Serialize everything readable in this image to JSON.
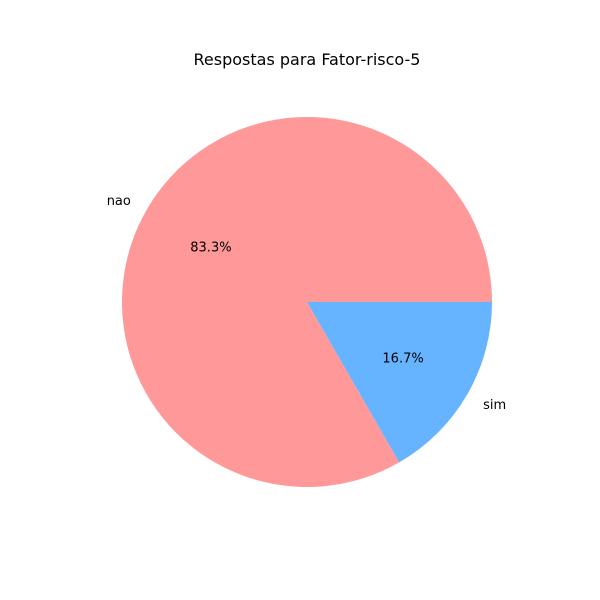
{
  "chart_data": {
    "type": "pie",
    "title": "Respostas para Fator-risco-5",
    "slices": [
      {
        "label": "nao",
        "value": 83.3,
        "pct_label": "83.3%",
        "color": "#ff9999"
      },
      {
        "label": "sim",
        "value": 16.7,
        "pct_label": "16.7%",
        "color": "#66b3ff"
      }
    ],
    "start_angle_deg": 0,
    "direction": "counterclockwise",
    "legend": "none"
  }
}
